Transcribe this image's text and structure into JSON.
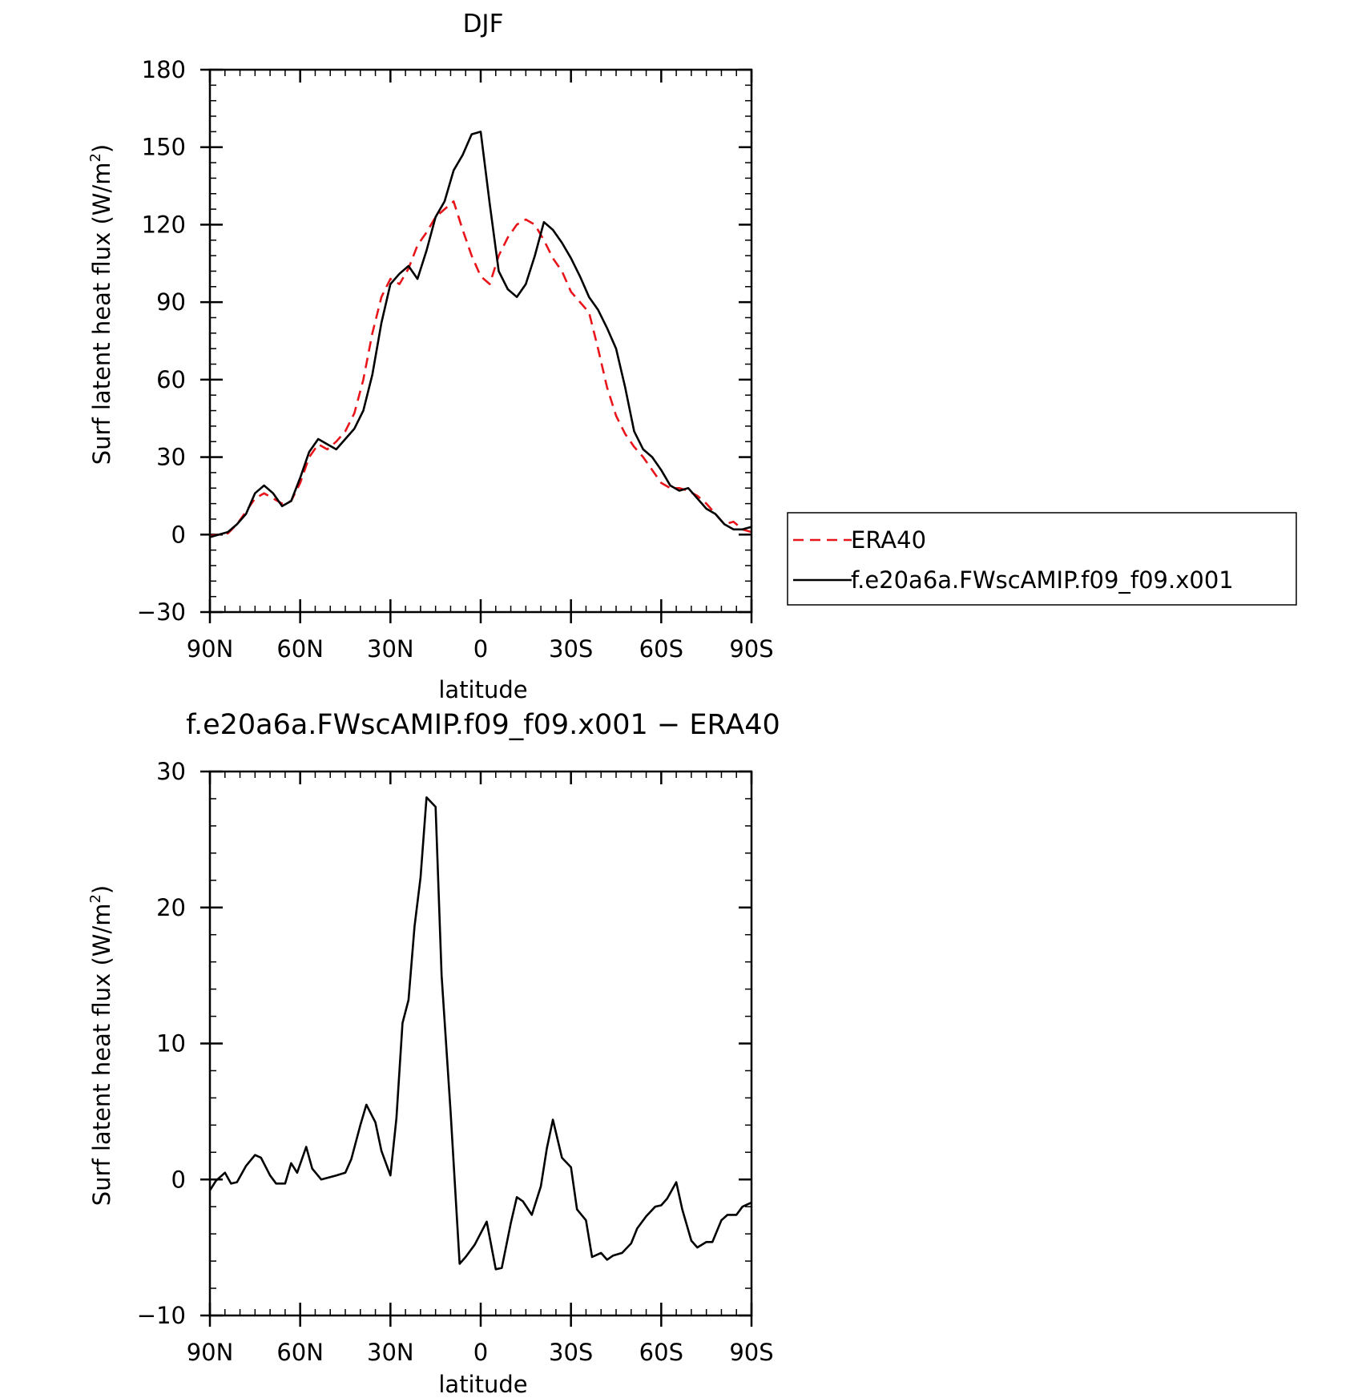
{
  "chart_data": [
    {
      "type": "line",
      "title": "DJF",
      "xlabel": "latitude",
      "ylabel": "Surf latent heat flux (W/m",
      "ylabel_sup": "2",
      "ylabel_close": ")",
      "xlim": [
        90,
        -90
      ],
      "ylim": [
        -30,
        180
      ],
      "xticks": [
        90,
        60,
        30,
        0,
        -30,
        -60,
        -90
      ],
      "xtick_labels": [
        "90N",
        "60N",
        "30N",
        "0",
        "30S",
        "60S",
        "90S"
      ],
      "yticks": [
        -30,
        0,
        30,
        60,
        90,
        120,
        150,
        180
      ],
      "ytick_labels": [
        "−30",
        "0",
        "30",
        "60",
        "90",
        "120",
        "150",
        "180"
      ],
      "legend": {
        "position": "right",
        "entries": [
          "ERA40",
          "f.e20a6a.FWscAMIP.f09_f09.x001"
        ]
      },
      "series": [
        {
          "name": "ERA40",
          "color": "#e8151b",
          "dash": "dashed",
          "x": [
            90,
            87,
            84,
            81,
            78,
            75,
            72,
            69,
            66,
            63,
            60,
            57,
            54,
            51,
            48,
            45,
            42,
            39,
            36,
            33,
            30,
            27,
            24,
            21,
            18,
            15,
            12,
            9,
            6,
            3,
            0,
            -3,
            -6,
            -9,
            -12,
            -15,
            -18,
            -21,
            -24,
            -27,
            -30,
            -33,
            -36,
            -39,
            -42,
            -45,
            -48,
            -51,
            -54,
            -57,
            -60,
            -63,
            -66,
            -69,
            -72,
            -75,
            -78,
            -81,
            -84,
            -87,
            -90
          ],
          "y": [
            -0.5,
            0,
            0.5,
            4,
            9,
            14,
            16,
            14,
            12,
            13,
            20,
            30,
            35,
            33,
            36,
            40,
            47,
            60,
            78,
            92,
            99,
            97,
            103,
            112,
            117,
            123,
            126,
            129,
            118,
            108,
            100,
            97,
            108,
            115,
            120,
            122,
            120,
            114,
            107,
            102,
            94,
            90,
            86,
            72,
            57,
            46,
            39,
            34,
            30,
            25,
            20,
            18,
            18,
            17,
            15,
            12,
            8,
            4,
            5,
            2,
            1
          ]
        },
        {
          "name": "f.e20a6a.FWscAMIP.f09_f09.x001",
          "color": "#000000",
          "dash": "solid",
          "x": [
            90,
            87,
            84,
            81,
            78,
            75,
            72,
            69,
            66,
            63,
            60,
            57,
            54,
            51,
            48,
            45,
            42,
            39,
            36,
            33,
            30,
            27,
            24,
            21,
            18,
            15,
            12,
            9,
            6,
            3,
            0,
            -3,
            -6,
            -9,
            -12,
            -15,
            -18,
            -21,
            -24,
            -27,
            -30,
            -33,
            -36,
            -39,
            -42,
            -45,
            -48,
            -51,
            -54,
            -57,
            -60,
            -63,
            -66,
            -69,
            -72,
            -75,
            -78,
            -81,
            -84,
            -87,
            -90
          ],
          "y": [
            -1,
            0,
            1,
            4,
            8,
            16,
            19,
            16,
            11,
            13,
            22,
            32,
            37,
            35,
            33,
            37,
            41,
            48,
            62,
            82,
            97,
            101,
            104,
            99,
            110,
            123,
            129,
            141,
            147,
            155,
            156,
            128,
            102,
            95,
            92,
            97,
            108,
            121,
            118,
            113,
            107,
            100,
            92,
            87,
            80,
            72,
            57,
            40,
            33,
            30,
            25,
            19,
            17,
            18,
            14,
            10,
            8,
            4,
            2,
            2,
            3
          ]
        }
      ]
    },
    {
      "type": "line",
      "title": "f.e20a6a.FWscAMIP.f09_f09.x001 − ERA40",
      "xlabel": "latitude",
      "ylabel": "Surf latent heat flux (W/m",
      "ylabel_sup": "2",
      "ylabel_close": ")",
      "xlim": [
        90,
        -90
      ],
      "ylim": [
        -10,
        30
      ],
      "xticks": [
        90,
        60,
        30,
        0,
        -30,
        -60,
        -90
      ],
      "xtick_labels": [
        "90N",
        "60N",
        "30N",
        "0",
        "30S",
        "60S",
        "90S"
      ],
      "yticks": [
        -10,
        0,
        10,
        20,
        30
      ],
      "ytick_labels": [
        "−10",
        "0",
        "10",
        "20",
        "30"
      ],
      "series": [
        {
          "color": "#000000",
          "dash": "solid",
          "x": [
            90,
            88,
            85,
            83,
            81,
            78,
            75,
            73,
            70,
            68,
            65,
            63,
            61,
            58,
            56,
            53,
            48,
            45,
            43,
            40,
            38,
            35,
            33,
            30,
            28,
            26,
            24,
            22,
            20,
            18,
            15,
            13,
            10,
            7,
            5,
            2,
            -2,
            -5,
            -7,
            -10,
            -12,
            -14,
            -17,
            -20,
            -22,
            -24,
            -27,
            -30,
            -32,
            -35,
            -37,
            -40,
            -42,
            -44,
            -47,
            -50,
            -52,
            -55,
            -58,
            -60,
            -62,
            -65,
            -67,
            -70,
            -72,
            -75,
            -77,
            -80,
            -82,
            -85,
            -87,
            -90
          ],
          "y": [
            -0.8,
            -0.1,
            0.5,
            -0.3,
            -0.2,
            1,
            1.8,
            1.6,
            0.3,
            -0.3,
            -0.3,
            1.2,
            0.5,
            2.4,
            0.8,
            0,
            0.3,
            0.5,
            1.5,
            4,
            5.5,
            4.2,
            2.1,
            0.3,
            4.5,
            11.5,
            13.2,
            18.6,
            22.2,
            28.1,
            27.4,
            15,
            5,
            -6.2,
            -5.7,
            -4.8,
            -3.1,
            -6.6,
            -6.5,
            -3.2,
            -1.3,
            -1.6,
            -2.6,
            -0.5,
            2.3,
            4.4,
            1.6,
            0.9,
            -2.2,
            -3,
            -5.7,
            -5.4,
            -5.9,
            -5.6,
            -5.4,
            -4.7,
            -3.6,
            -2.7,
            -2,
            -1.9,
            -1.4,
            -0.2,
            -2.2,
            -4.5,
            -5,
            -4.6,
            -4.6,
            -3,
            -2.6,
            -2.6,
            -2,
            -1.7
          ]
        }
      ]
    }
  ]
}
